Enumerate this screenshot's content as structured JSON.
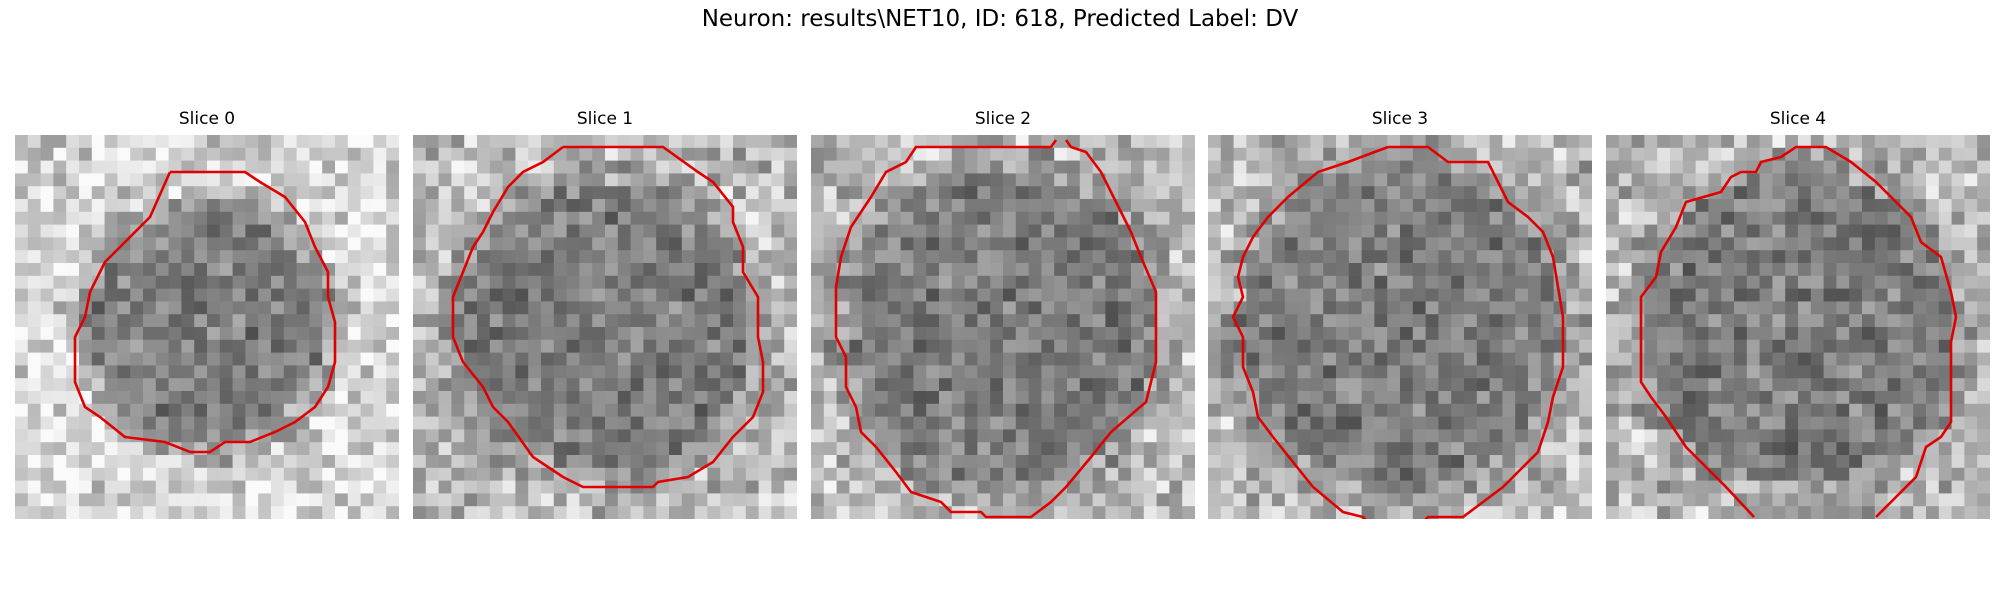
{
  "title": "Neuron: results\\NET10, ID: 618, Predicted Label: DV",
  "panels": [
    {
      "label": "Slice 0",
      "seed": 11,
      "center": 155,
      "roiSize": 0.68,
      "bg": "bright"
    },
    {
      "label": "Slice 1",
      "seed": 23,
      "center": 145,
      "roiSize": 0.84,
      "bg": "mixed"
    },
    {
      "label": "Slice 2",
      "seed": 37,
      "center": 150,
      "roiSize": 0.9,
      "bg": "mixed"
    },
    {
      "label": "Slice 3",
      "seed": 51,
      "center": 150,
      "roiSize": 0.94,
      "bg": "mixed"
    },
    {
      "label": "Slice 4",
      "seed": 67,
      "center": 160,
      "roiSize": 0.9,
      "bg": "mixed"
    }
  ],
  "colors": {
    "contour": "#e00000"
  }
}
